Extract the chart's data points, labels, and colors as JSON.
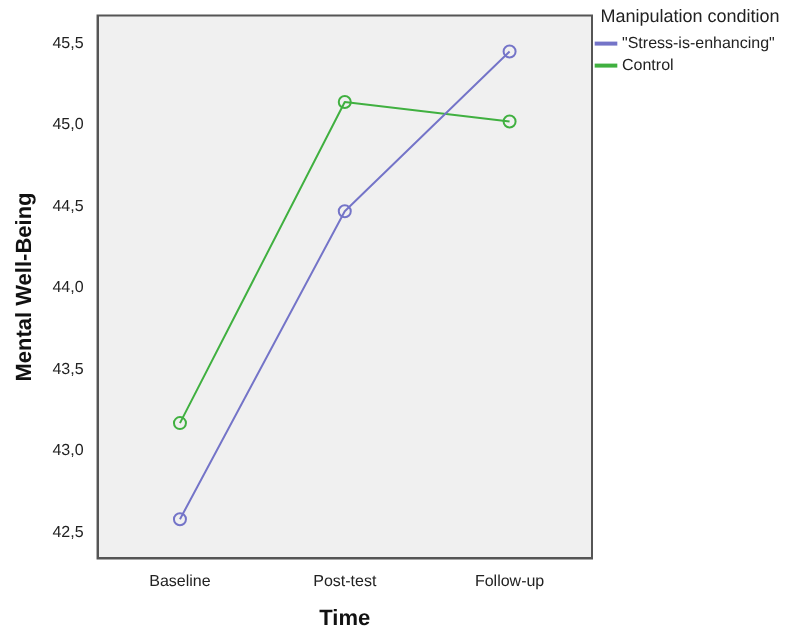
{
  "chart_data": {
    "type": "line",
    "xlabel": "Time",
    "ylabel": "Mental Well-Being",
    "legend_title": "Manipulation condition",
    "categories": [
      "Baseline",
      "Post-test",
      "Follow-up"
    ],
    "series": [
      {
        "name": "\"Stress-is-enhancing\"",
        "color": "#7474c8",
        "values": [
          42.58,
          44.47,
          45.45
        ]
      },
      {
        "name": "Control",
        "color": "#40b040",
        "values": [
          43.17,
          45.14,
          45.02
        ]
      }
    ],
    "ylim": [
      42.34,
      45.67
    ],
    "yticks": [
      {
        "value": 42.5,
        "label": "42,5"
      },
      {
        "value": 43,
        "label": "43,0"
      },
      {
        "value": 43.5,
        "label": "43,5"
      },
      {
        "value": 44,
        "label": "44,0"
      },
      {
        "value": 44.5,
        "label": "44,5"
      },
      {
        "value": 45,
        "label": "45,0"
      },
      {
        "value": 45.5,
        "label": "45,5"
      }
    ],
    "grid": false,
    "legend": "top right",
    "marker": "circle",
    "line_style": "solid"
  }
}
